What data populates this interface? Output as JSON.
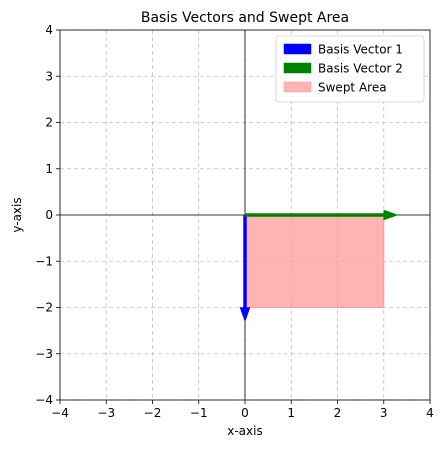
{
  "chart_data": {
    "type": "vector-plot",
    "title": "Basis Vectors and Swept Area",
    "xlabel": "x-axis",
    "ylabel": "y-axis",
    "xlim": [
      -4,
      4
    ],
    "ylim": [
      -4,
      4
    ],
    "xticks": [
      -4,
      -3,
      -2,
      -1,
      0,
      1,
      2,
      3,
      4
    ],
    "yticks": [
      -4,
      -3,
      -2,
      -1,
      0,
      1,
      2,
      3,
      4
    ],
    "grid": true,
    "legend_position": "top-right",
    "vectors": [
      {
        "name": "Basis Vector 1",
        "origin": [
          0,
          0
        ],
        "components": [
          0,
          -2
        ],
        "color": "#0000ff"
      },
      {
        "name": "Basis Vector 2",
        "origin": [
          0,
          0
        ],
        "components": [
          3,
          0
        ],
        "color": "#008000"
      }
    ],
    "area": {
      "name": "Swept Area",
      "corners": [
        [
          0,
          0
        ],
        [
          3,
          0
        ],
        [
          3,
          -2
        ],
        [
          0,
          -2
        ]
      ],
      "color": "#ff9999"
    }
  }
}
